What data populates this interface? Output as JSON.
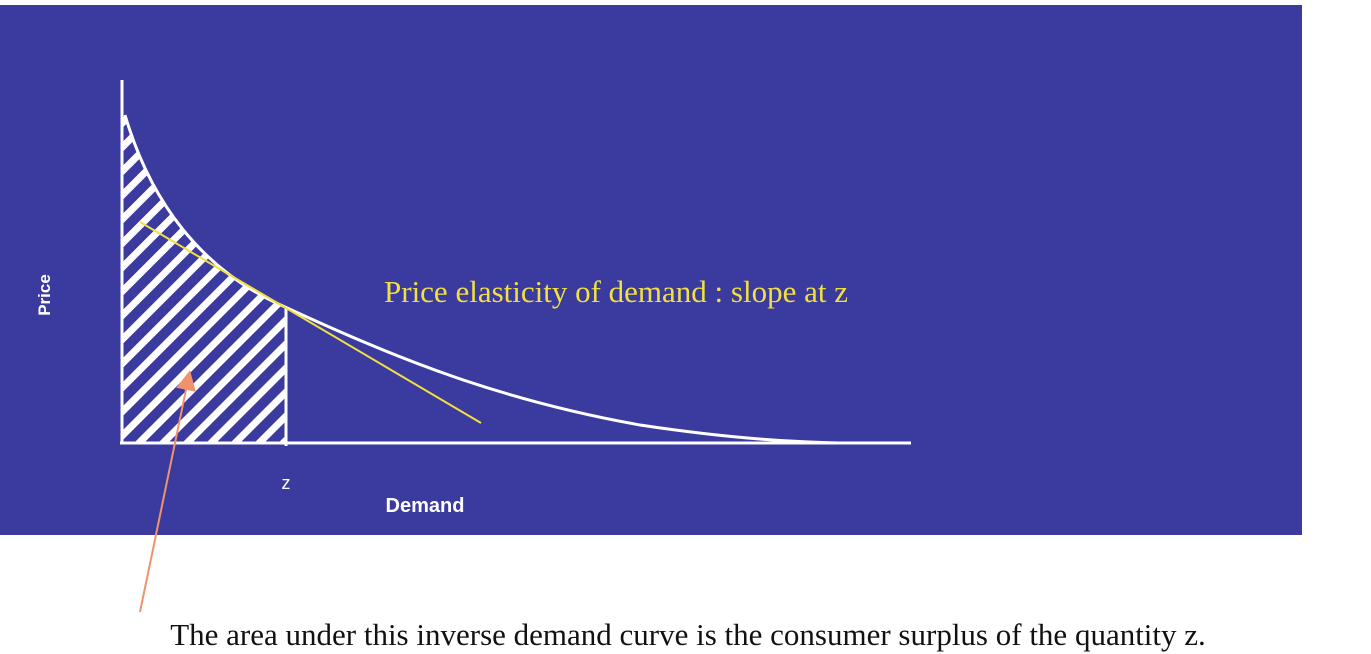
{
  "diagram": {
    "y_axis_label": "Price",
    "x_axis_label": "Demand",
    "x_marker_label": "z",
    "tangent_annotation": "Price elasticity of demand : slope at z",
    "caption": "The area under this inverse demand curve is the consumer surplus of the quantity z."
  }
}
